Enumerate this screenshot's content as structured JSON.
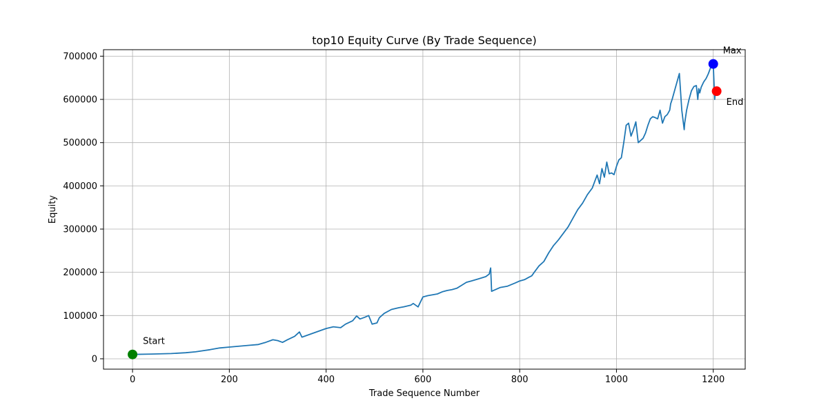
{
  "chart_data": {
    "type": "line",
    "title": "top10 Equity Curve (By Trade Sequence)",
    "xlabel": "Trade Sequence Number",
    "ylabel": "Equity",
    "xlim": [
      -60,
      1266
    ],
    "ylim": [
      -24000,
      715000
    ],
    "xticks": [
      0,
      200,
      400,
      600,
      800,
      1000,
      1200
    ],
    "xtick_labels": [
      "0",
      "200",
      "400",
      "600",
      "800",
      "1000",
      "1200"
    ],
    "yticks": [
      0,
      100000,
      200000,
      300000,
      400000,
      500000,
      600000,
      700000
    ],
    "ytick_labels": [
      "0",
      "100000",
      "200000",
      "300000",
      "400000",
      "500000",
      "600000",
      "700000"
    ],
    "grid": true,
    "line_color": "#1f77b4",
    "series": [
      {
        "x": [
          0,
          40,
          80,
          110,
          130,
          160,
          180,
          200,
          240,
          260,
          275,
          290,
          300,
          310,
          320,
          335,
          345,
          350,
          365,
          380,
          400,
          415,
          430,
          440,
          455,
          463,
          470,
          480,
          488,
          495,
          505,
          510,
          520,
          535,
          550,
          560,
          575,
          580,
          590,
          600,
          610,
          620,
          630,
          640,
          650,
          660,
          670,
          680,
          690,
          700,
          715,
          730,
          737,
          740,
          742,
          750,
          760,
          775,
          790,
          800,
          810,
          818,
          825,
          830,
          840,
          850,
          860,
          870,
          880,
          890,
          900,
          910,
          920,
          930,
          940,
          950,
          955,
          960,
          965,
          970,
          975,
          980,
          985,
          990,
          995,
          1000,
          1005,
          1010,
          1015,
          1020,
          1025,
          1030,
          1035,
          1040,
          1045,
          1050,
          1055,
          1060,
          1065,
          1070,
          1075,
          1080,
          1085,
          1090,
          1095,
          1100,
          1105,
          1110,
          1112,
          1115,
          1120,
          1125,
          1130,
          1135,
          1140,
          1141,
          1143,
          1145,
          1150,
          1155,
          1160,
          1165,
          1168,
          1170,
          1172,
          1175,
          1180,
          1183,
          1185,
          1188,
          1190,
          1195,
          1200,
          1203,
          1205,
          1207
        ],
        "y": [
          10000,
          11000,
          12000,
          14000,
          16000,
          21000,
          25000,
          27000,
          31000,
          33000,
          38000,
          44000,
          42000,
          38000,
          44000,
          52000,
          62000,
          50000,
          56000,
          62000,
          70000,
          74000,
          72000,
          80000,
          88000,
          99000,
          92000,
          96000,
          100000,
          80000,
          83000,
          95000,
          105000,
          114000,
          118000,
          120000,
          124000,
          128000,
          120000,
          143000,
          146000,
          148000,
          150000,
          155000,
          158000,
          160000,
          163000,
          170000,
          177000,
          180000,
          185000,
          190000,
          196000,
          210000,
          156000,
          160000,
          165000,
          168000,
          175000,
          180000,
          183000,
          188000,
          192000,
          200000,
          215000,
          225000,
          245000,
          262000,
          275000,
          290000,
          305000,
          325000,
          345000,
          360000,
          380000,
          395000,
          410000,
          425000,
          405000,
          440000,
          420000,
          455000,
          428000,
          430000,
          426000,
          445000,
          460000,
          465000,
          500000,
          540000,
          545000,
          515000,
          530000,
          548000,
          500000,
          505000,
          510000,
          522000,
          540000,
          555000,
          560000,
          558000,
          555000,
          575000,
          545000,
          560000,
          565000,
          575000,
          590000,
          600000,
          620000,
          640000,
          660000,
          575000,
          530000,
          545000,
          560000,
          575000,
          600000,
          620000,
          630000,
          632000,
          600000,
          625000,
          615000,
          628000,
          640000,
          645000,
          648000,
          655000,
          660000,
          675000,
          682000,
          600000,
          625000,
          619000
        ]
      }
    ],
    "markers": [
      {
        "label": "Start",
        "x": 0,
        "y": 10000,
        "color": "#008000"
      },
      {
        "label": "Max",
        "x": 1200,
        "y": 682000,
        "color": "#0000ff"
      },
      {
        "label": "End",
        "x": 1207,
        "y": 619000,
        "color": "#ff0000"
      }
    ]
  }
}
